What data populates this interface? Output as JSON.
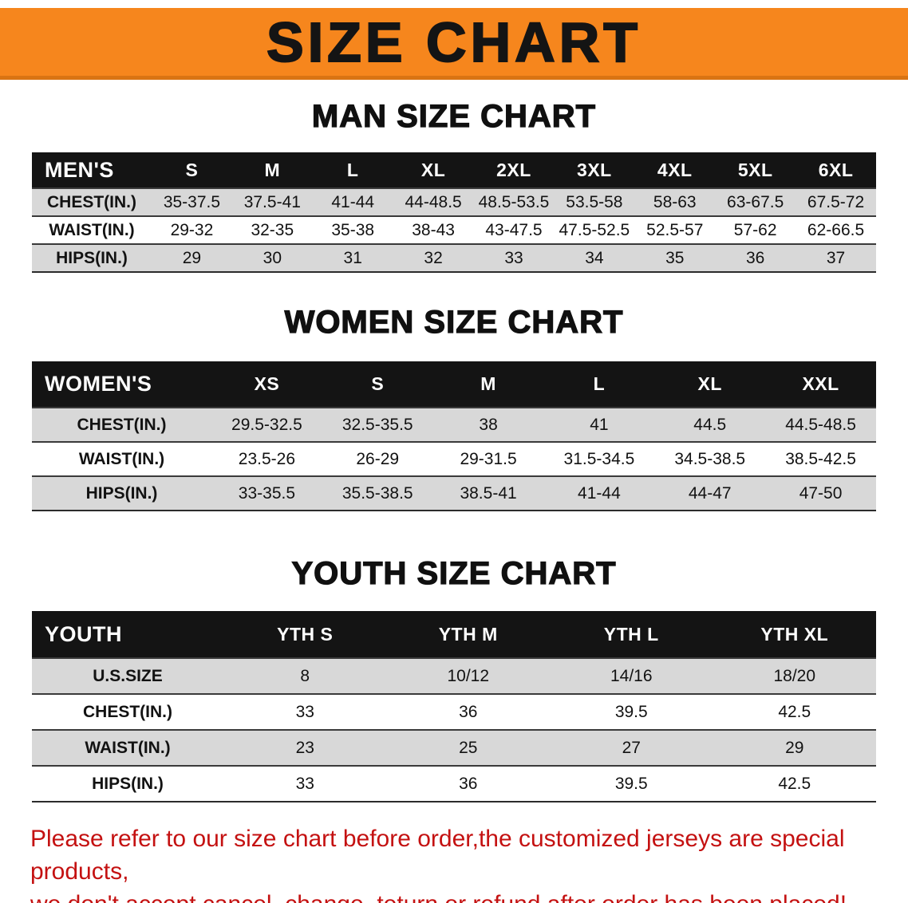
{
  "banner": {
    "title": "SIZE CHART"
  },
  "colors": {
    "banner_bg": "#f6861d",
    "banner_edge": "#d97413",
    "header_bg": "#141414",
    "row_shade": "#d8d8d8",
    "footer_red": "#c41111"
  },
  "chart_data": [
    {
      "type": "table",
      "title": "MAN SIZE CHART",
      "columns": [
        "MEN'S",
        "S",
        "M",
        "L",
        "XL",
        "2XL",
        "3XL",
        "4XL",
        "5XL",
        "6XL"
      ],
      "rows": [
        [
          "CHEST(IN.)",
          "35-37.5",
          "37.5-41",
          "41-44",
          "44-48.5",
          "48.5-53.5",
          "53.5-58",
          "58-63",
          "63-67.5",
          "67.5-72"
        ],
        [
          "WAIST(IN.)",
          "29-32",
          "32-35",
          "35-38",
          "38-43",
          "43-47.5",
          "47.5-52.5",
          "52.5-57",
          "57-62",
          "62-66.5"
        ],
        [
          "HIPS(IN.)",
          "29",
          "30",
          "31",
          "32",
          "33",
          "34",
          "35",
          "36",
          "37"
        ]
      ]
    },
    {
      "type": "table",
      "title": "WOMEN SIZE CHART",
      "columns": [
        "WOMEN'S",
        "XS",
        "S",
        "M",
        "L",
        "XL",
        "XXL"
      ],
      "rows": [
        [
          "CHEST(IN.)",
          "29.5-32.5",
          "32.5-35.5",
          "38",
          "41",
          "44.5",
          "44.5-48.5"
        ],
        [
          "WAIST(IN.)",
          "23.5-26",
          "26-29",
          "29-31.5",
          "31.5-34.5",
          "34.5-38.5",
          "38.5-42.5"
        ],
        [
          "HIPS(IN.)",
          "33-35.5",
          "35.5-38.5",
          "38.5-41",
          "41-44",
          "44-47",
          "47-50"
        ]
      ]
    },
    {
      "type": "table",
      "title": "YOUTH SIZE CHART",
      "columns": [
        "YOUTH",
        "YTH S",
        "YTH M",
        "YTH L",
        "YTH XL"
      ],
      "rows": [
        [
          "U.S.SIZE",
          "8",
          "10/12",
          "14/16",
          "18/20"
        ],
        [
          "CHEST(IN.)",
          "33",
          "36",
          "39.5",
          "42.5"
        ],
        [
          "WAIST(IN.)",
          "23",
          "25",
          "27",
          "29"
        ],
        [
          "HIPS(IN.)",
          "33",
          "36",
          "39.5",
          "42.5"
        ]
      ]
    }
  ],
  "footer": {
    "line1": "Please refer to our size chart before order,the customized jerseys are special products,",
    "line2": "we don't accept cancel, change, teturn or refund after order has been placed!"
  }
}
